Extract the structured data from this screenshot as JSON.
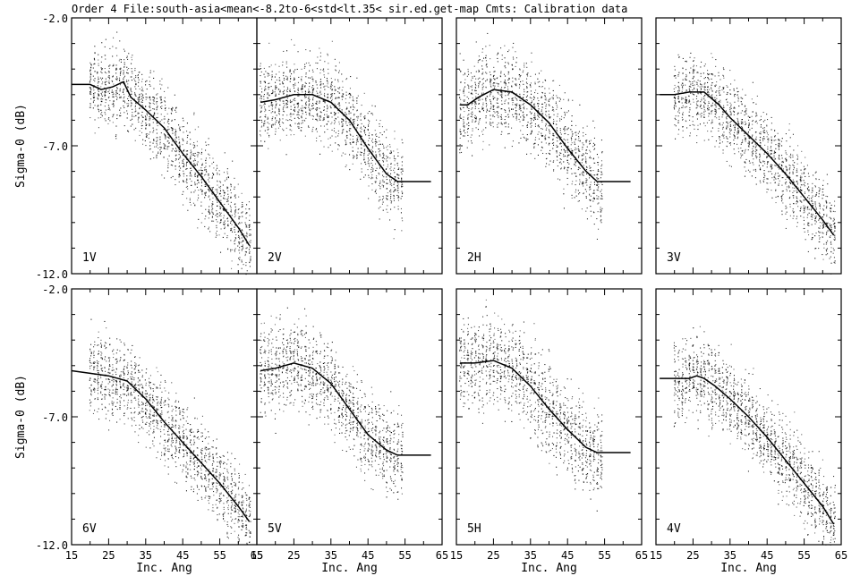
{
  "header": {
    "title": "Order 4   File:south-asia<mean<-8.2to-6<std<lt.35< sir.ed.get-map  Cmts:   Calibration data"
  },
  "chart_data": [
    {
      "type": "scatter",
      "panel_label": "1V",
      "xlabel": "Inc. Ang",
      "ylabel": "Sigma-0 (dB)",
      "xlim": [
        15,
        65
      ],
      "ylim": [
        -12,
        -2
      ],
      "x_ticks": [
        "15",
        "25",
        "35",
        "45",
        "55",
        "65"
      ],
      "y_ticks": [
        "-2.0",
        "-7.0",
        "-12.0"
      ],
      "scatter": {
        "x_range": [
          20,
          63
        ],
        "spread": 1.6
      },
      "fit_curve": {
        "x": [
          15,
          20,
          23,
          26,
          29,
          31,
          35,
          40,
          45,
          50,
          55,
          60,
          63
        ],
        "y": [
          -4.6,
          -4.6,
          -4.8,
          -4.7,
          -4.5,
          -5.1,
          -5.6,
          -6.3,
          -7.3,
          -8.2,
          -9.2,
          -10.2,
          -10.9
        ]
      }
    },
    {
      "type": "scatter",
      "panel_label": "2V",
      "xlabel": "Inc. Ang",
      "ylabel": "Sigma-0 (dB)",
      "xlim": [
        15,
        65
      ],
      "ylim": [
        -12,
        -2
      ],
      "x_ticks": [
        "15",
        "25",
        "35",
        "45",
        "55",
        "65"
      ],
      "y_ticks": [
        "-2.0",
        "-7.0",
        "-12.0"
      ],
      "scatter": {
        "x_range": [
          16,
          54
        ],
        "spread": 1.7
      },
      "fit_curve": {
        "x": [
          16,
          20,
          25,
          30,
          35,
          40,
          45,
          50,
          53,
          62
        ],
        "y": [
          -5.3,
          -5.2,
          -5.0,
          -5.0,
          -5.3,
          -6.0,
          -7.1,
          -8.1,
          -8.4,
          -8.4
        ]
      }
    },
    {
      "type": "scatter",
      "panel_label": "2H",
      "xlabel": "Inc. Ang",
      "ylabel": "Sigma-0 (dB)",
      "xlim": [
        15,
        65
      ],
      "ylim": [
        -12,
        -2
      ],
      "x_ticks": [
        "15",
        "25",
        "35",
        "45",
        "55",
        "65"
      ],
      "y_ticks": [
        "-2.0",
        "-7.0",
        "-12.0"
      ],
      "scatter": {
        "x_range": [
          16,
          54
        ],
        "spread": 1.7
      },
      "fit_curve": {
        "x": [
          16,
          18,
          21,
          25,
          30,
          35,
          40,
          45,
          50,
          53,
          62
        ],
        "y": [
          -5.4,
          -5.4,
          -5.1,
          -4.8,
          -4.9,
          -5.4,
          -6.1,
          -7.1,
          -8.0,
          -8.4,
          -8.4
        ]
      }
    },
    {
      "type": "scatter",
      "panel_label": "3V",
      "xlabel": "Inc. Ang",
      "ylabel": "Sigma-0 (dB)",
      "xlim": [
        15,
        65
      ],
      "ylim": [
        -12,
        -2
      ],
      "x_ticks": [
        "15",
        "25",
        "35",
        "45",
        "55",
        "65"
      ],
      "y_ticks": [
        "-2.0",
        "-7.0",
        "-12.0"
      ],
      "scatter": {
        "x_range": [
          20,
          63
        ],
        "spread": 1.6
      },
      "fit_curve": {
        "x": [
          16,
          20,
          24,
          28,
          32,
          35,
          40,
          45,
          50,
          55,
          60,
          63
        ],
        "y": [
          -5.0,
          -5.0,
          -4.9,
          -4.9,
          -5.4,
          -5.9,
          -6.6,
          -7.3,
          -8.1,
          -9.0,
          -9.9,
          -10.5
        ]
      }
    },
    {
      "type": "scatter",
      "panel_label": "6V",
      "xlabel": "Inc. Ang",
      "ylabel": "Sigma-0 (dB)",
      "xlim": [
        15,
        65
      ],
      "ylim": [
        -12,
        -2
      ],
      "x_ticks": [
        "15",
        "25",
        "35",
        "45",
        "55",
        "65"
      ],
      "y_ticks": [
        "-2.0",
        "-7.0",
        "-12.0"
      ],
      "scatter": {
        "x_range": [
          20,
          63
        ],
        "spread": 1.6
      },
      "fit_curve": {
        "x": [
          15,
          20,
          25,
          30,
          35,
          40,
          45,
          50,
          55,
          60,
          63
        ],
        "y": [
          -5.2,
          -5.3,
          -5.4,
          -5.6,
          -6.3,
          -7.2,
          -8.0,
          -8.8,
          -9.6,
          -10.5,
          -11.1
        ]
      }
    },
    {
      "type": "scatter",
      "panel_label": "5V",
      "xlabel": "Inc. Ang",
      "ylabel": "Sigma-0 (dB)",
      "xlim": [
        15,
        65
      ],
      "ylim": [
        -12,
        -2
      ],
      "x_ticks": [
        "15",
        "25",
        "35",
        "45",
        "55",
        "65"
      ],
      "y_ticks": [
        "-2.0",
        "-7.0",
        "-12.0"
      ],
      "scatter": {
        "x_range": [
          16,
          54
        ],
        "spread": 1.7
      },
      "fit_curve": {
        "x": [
          16,
          20,
          25,
          30,
          35,
          40,
          45,
          50,
          53,
          62
        ],
        "y": [
          -5.2,
          -5.1,
          -4.9,
          -5.1,
          -5.7,
          -6.7,
          -7.7,
          -8.3,
          -8.5,
          -8.5
        ]
      }
    },
    {
      "type": "scatter",
      "panel_label": "5H",
      "xlabel": "Inc. Ang",
      "ylabel": "Sigma-0 (dB)",
      "xlim": [
        15,
        65
      ],
      "ylim": [
        -12,
        -2
      ],
      "x_ticks": [
        "15",
        "25",
        "35",
        "45",
        "55",
        "65"
      ],
      "y_ticks": [
        "-2.0",
        "-7.0",
        "-12.0"
      ],
      "scatter": {
        "x_range": [
          16,
          54
        ],
        "spread": 1.8
      },
      "fit_curve": {
        "x": [
          16,
          20,
          25,
          30,
          35,
          40,
          45,
          50,
          53,
          62
        ],
        "y": [
          -4.9,
          -4.9,
          -4.8,
          -5.1,
          -5.8,
          -6.7,
          -7.5,
          -8.2,
          -8.4,
          -8.4
        ]
      }
    },
    {
      "type": "scatter",
      "panel_label": "4V",
      "xlabel": "Inc. Ang",
      "ylabel": "Sigma-0 (dB)",
      "xlim": [
        15,
        65
      ],
      "ylim": [
        -12,
        -2
      ],
      "x_ticks": [
        "15",
        "25",
        "35",
        "45",
        "55",
        "65"
      ],
      "y_ticks": [
        "-2.0",
        "-7.0",
        "-12.0"
      ],
      "scatter": {
        "x_range": [
          20,
          63
        ],
        "spread": 1.6
      },
      "fit_curve": {
        "x": [
          16,
          20,
          24,
          26,
          28,
          31,
          35,
          40,
          45,
          50,
          55,
          60,
          63
        ],
        "y": [
          -5.5,
          -5.5,
          -5.5,
          -5.4,
          -5.5,
          -5.8,
          -6.3,
          -7.0,
          -7.8,
          -8.7,
          -9.6,
          -10.5,
          -11.2
        ]
      }
    }
  ]
}
